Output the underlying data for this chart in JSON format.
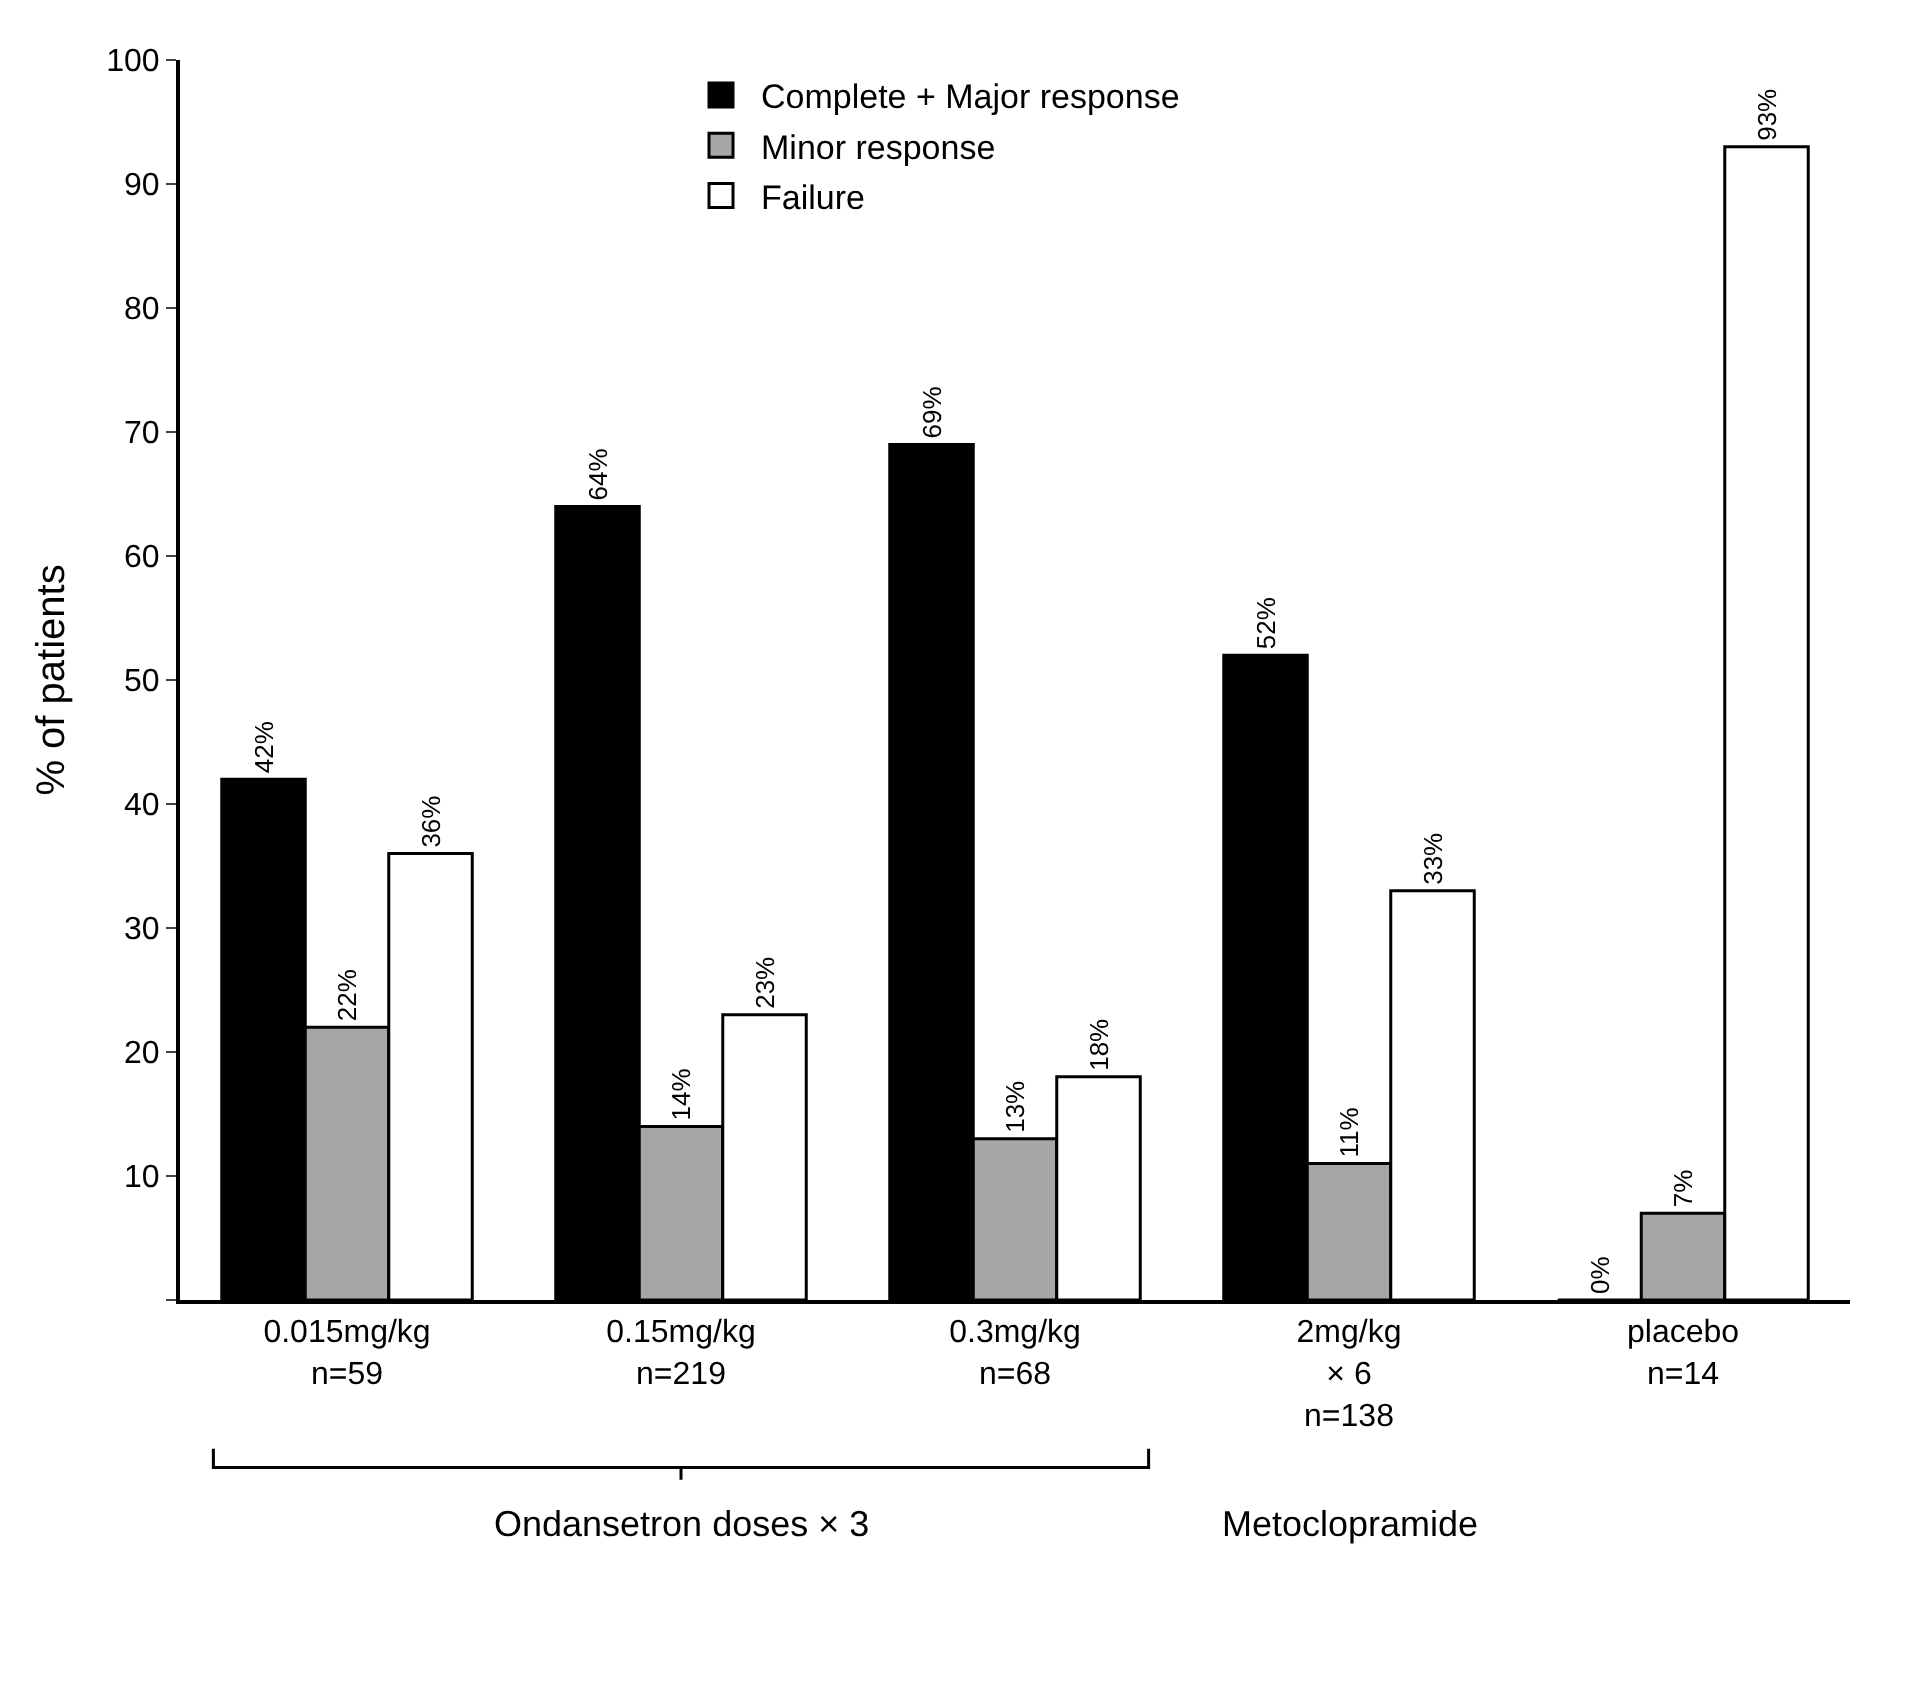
{
  "chart_data": {
    "type": "bar",
    "categories": [
      "0.015mg/kg\nn=59",
      "0.15mg/kg\nn=219",
      "0.3mg/kg\nn=68",
      "2mg/kg\n× 6\nn=138",
      "placebo\nn=14"
    ],
    "series": [
      {
        "name": "Complete + Major response",
        "color": "#000000",
        "values": [
          42,
          64,
          69,
          52,
          0
        ],
        "value_labels": [
          "42%",
          "64%",
          "69%",
          "52%",
          "0%"
        ]
      },
      {
        "name": "Minor response",
        "color": "#a6a6a6",
        "values": [
          22,
          14,
          13,
          11,
          7
        ],
        "value_labels": [
          "22%",
          "14%",
          "13%",
          "11%",
          "7%"
        ]
      },
      {
        "name": "Failure",
        "color": "#ffffff",
        "values": [
          36,
          23,
          18,
          33,
          93
        ],
        "value_labels": [
          "36%",
          "23%",
          "18%",
          "33%",
          "93%"
        ]
      }
    ],
    "ylabel": "% of patients",
    "ylim": [
      0,
      100
    ],
    "yticks": [
      {
        "value": 0,
        "label": null
      },
      10,
      20,
      30,
      40,
      50,
      60,
      70,
      80,
      90,
      100
    ],
    "annotations": [
      "Ondansetron doses × 3",
      "Metoclopramide"
    ],
    "legend": "top"
  }
}
